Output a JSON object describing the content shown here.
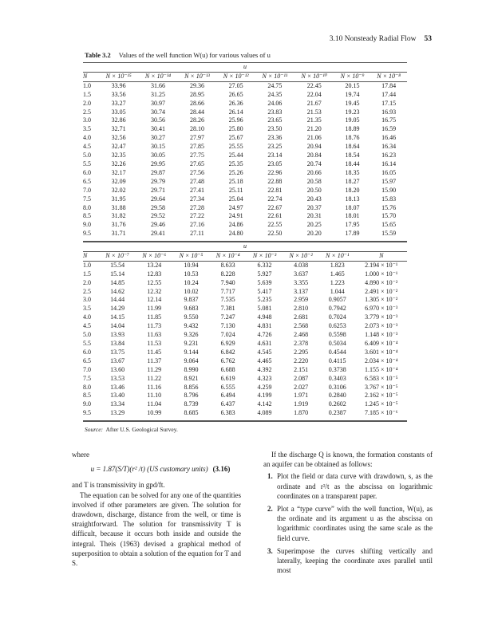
{
  "running_head": {
    "section": "3.10 Nonsteady Radial Flow",
    "page": "53"
  },
  "caption": {
    "label": "Table 3.2",
    "text": "Values of the well function W(u) for various values of u"
  },
  "table1": {
    "group_label": "u",
    "headers": [
      "N",
      "N × 10⁻¹⁵",
      "N × 10⁻¹⁴",
      "N × 10⁻¹³",
      "N × 10⁻¹²",
      "N × 10⁻¹¹",
      "N × 10⁻¹⁰",
      "N × 10⁻⁹",
      "N × 10⁻⁸"
    ],
    "rows": [
      [
        "1.0",
        "33.96",
        "31.66",
        "29.36",
        "27.05",
        "24.75",
        "22.45",
        "20.15",
        "17.84"
      ],
      [
        "1.5",
        "33.56",
        "31.25",
        "28.95",
        "26.65",
        "24.35",
        "22.04",
        "19.74",
        "17.44"
      ],
      [
        "2.0",
        "33.27",
        "30.97",
        "28.66",
        "26.36",
        "24.06",
        "21.67",
        "19.45",
        "17.15"
      ],
      [
        "2.5",
        "33.05",
        "30.74",
        "28.44",
        "26.14",
        "23.83",
        "21.53",
        "19.23",
        "16.93"
      ],
      [
        "3.0",
        "32.86",
        "30.56",
        "28.26",
        "25.96",
        "23.65",
        "21.35",
        "19.05",
        "16.75"
      ],
      [
        "3.5",
        "32.71",
        "30.41",
        "28.10",
        "25.80",
        "23.50",
        "21.20",
        "18.89",
        "16.59"
      ],
      [
        "4.0",
        "32.56",
        "30.27",
        "27.97",
        "25.67",
        "23.36",
        "21.06",
        "18.76",
        "16.46"
      ],
      [
        "4.5",
        "32.47",
        "30.15",
        "27.85",
        "25.55",
        "23.25",
        "20.94",
        "18.64",
        "16.34"
      ],
      [
        "5.0",
        "32.35",
        "30.05",
        "27.75",
        "25.44",
        "23.14",
        "20.84",
        "18.54",
        "16.23"
      ],
      [
        "5.5",
        "32.26",
        "29.95",
        "27.65",
        "25.35",
        "23.05",
        "20.74",
        "18.44",
        "16.14"
      ],
      [
        "6.0",
        "32.17",
        "29.87",
        "27.56",
        "25.26",
        "22.96",
        "20.66",
        "18.35",
        "16.05"
      ],
      [
        "6.5",
        "32.09",
        "29.79",
        "27.48",
        "25.18",
        "22.88",
        "20.58",
        "18.27",
        "15.97"
      ],
      [
        "7.0",
        "32.02",
        "29.71",
        "27.41",
        "25.11",
        "22.81",
        "20.50",
        "18.20",
        "15.90"
      ],
      [
        "7.5",
        "31.95",
        "29.64",
        "27.34",
        "25.04",
        "22.74",
        "20.43",
        "18.13",
        "15.83"
      ],
      [
        "8.0",
        "31.88",
        "29.58",
        "27.28",
        "24.97",
        "22.67",
        "20.37",
        "18.07",
        "15.76"
      ],
      [
        "8.5",
        "31.82",
        "29.52",
        "27.22",
        "24.91",
        "22.61",
        "20.31",
        "18.01",
        "15.70"
      ],
      [
        "9.0",
        "31.76",
        "29.46",
        "27.16",
        "24.86",
        "22.55",
        "20.25",
        "17.95",
        "15.65"
      ],
      [
        "9.5",
        "31.71",
        "29.41",
        "27.11",
        "24.80",
        "22.50",
        "20.20",
        "17.89",
        "15.59"
      ]
    ]
  },
  "table2": {
    "group_label": "u",
    "headers": [
      "N",
      "N × 10⁻⁷",
      "N × 10⁻⁶",
      "N × 10⁻⁵",
      "N × 10⁻⁴",
      "N × 10⁻³",
      "N × 10⁻²",
      "N × 10⁻¹",
      "N"
    ],
    "rows": [
      [
        "1.0",
        "15.54",
        "13.24",
        "10.94",
        "8.633",
        "6.332",
        "4.038",
        "1.823",
        "2.194 × 10⁻¹"
      ],
      [
        "1.5",
        "15.14",
        "12.83",
        "10.53",
        "8.228",
        "5.927",
        "3.637",
        "1.465",
        "1.000 × 10⁻¹"
      ],
      [
        "2.0",
        "14.85",
        "12.55",
        "10.24",
        "7.940",
        "5.639",
        "3.355",
        "1.223",
        "4.890 × 10⁻²"
      ],
      [
        "2.5",
        "14.62",
        "12.32",
        "10.02",
        "7.717",
        "5.417",
        "3.137",
        "1.044",
        "2.491 × 10⁻²"
      ],
      [
        "3.0",
        "14.44",
        "12.14",
        "9.837",
        "7.535",
        "5.235",
        "2.959",
        "0.9057",
        "1.305 × 10⁻²"
      ],
      [
        "3.5",
        "14.29",
        "11.99",
        "9.683",
        "7.381",
        "5.081",
        "2.810",
        "0.7942",
        "6.970 × 10⁻³"
      ],
      [
        "4.0",
        "14.15",
        "11.85",
        "9.550",
        "7.247",
        "4.948",
        "2.681",
        "0.7024",
        "3.779 × 10⁻³"
      ],
      [
        "4.5",
        "14.04",
        "11.73",
        "9.432",
        "7.130",
        "4.831",
        "2.568",
        "0.6253",
        "2.073 × 10⁻³"
      ],
      [
        "5.0",
        "13.93",
        "11.63",
        "9.326",
        "7.024",
        "4.726",
        "2.468",
        "0.5598",
        "1.148 × 10⁻³"
      ],
      [
        "5.5",
        "13.84",
        "11.53",
        "9.231",
        "6.929",
        "4.631",
        "2.378",
        "0.5034",
        "6.409 × 10⁻⁴"
      ],
      [
        "6.0",
        "13.75",
        "11.45",
        "9.144",
        "6.842",
        "4.545",
        "2.295",
        "0.4544",
        "3.601 × 10⁻⁴"
      ],
      [
        "6.5",
        "13.67",
        "11.37",
        "9.064",
        "6.762",
        "4.465",
        "2.220",
        "0.4115",
        "2.034 × 10⁻⁴"
      ],
      [
        "7.0",
        "13.60",
        "11.29",
        "8.990",
        "6.688",
        "4.392",
        "2.151",
        "0.3738",
        "1.155 × 10⁻⁴"
      ],
      [
        "7.5",
        "13.53",
        "11.22",
        "8.921",
        "6.619",
        "4.323",
        "2.087",
        "0.3403",
        "6.583 × 10⁻⁵"
      ],
      [
        "8.0",
        "13.46",
        "11.16",
        "8.856",
        "6.555",
        "4.259",
        "2.027",
        "0.3106",
        "3.767 × 10⁻⁵"
      ],
      [
        "8.5",
        "13.40",
        "11.10",
        "8.796",
        "6.494",
        "4.199",
        "1.971",
        "0.2840",
        "2.162 × 10⁻⁵"
      ],
      [
        "9.0",
        "13.34",
        "11.04",
        "8.739",
        "6.437",
        "4.142",
        "1.919",
        "0.2602",
        "1.245 × 10⁻⁵"
      ],
      [
        "9.5",
        "13.29",
        "10.99",
        "8.685",
        "6.383",
        "4.089",
        "1.870",
        "0.2387",
        "7.185 × 10⁻⁶"
      ]
    ]
  },
  "source": {
    "label": "Source:",
    "text": "After U.S. Geological Survey."
  },
  "left_column": {
    "where": "where",
    "equation": "u = 1.87(S/T)(r² /t)   (US customary units)",
    "equation_number": "(3.16)",
    "t_def": "and T is transmissivity in gpd/ft.",
    "paragraph": "The equation can be solved for any one of the quantities involved if other parameters are given. The solution for drawdown, discharge, distance from the well, or time is straightforward. The solution for transmissivity T is difficult, because it occurs both inside and outside the integral. Theis (1963) devised a graphical method of superposition to obtain a solution of the equation for T and S."
  },
  "right_column": {
    "intro": "If the discharge Q is known, the formation constants of an aquifer can be obtained as follows:",
    "steps": [
      {
        "num": "1.",
        "text": "Plot the field or data curve with drawdown, s, as the ordinate and r²/t as the abscissa on logarithmic coordinates on a transparent paper."
      },
      {
        "num": "2.",
        "text": "Plot a “type curve” with the well function, W(u), as the ordinate and its argument u as the abscissa on logarithmic coordinates using the same scale as the field curve."
      },
      {
        "num": "3.",
        "text": "Superimpose the curves shifting vertically and laterally, keeping the coordinate axes parallel until most"
      }
    ]
  }
}
